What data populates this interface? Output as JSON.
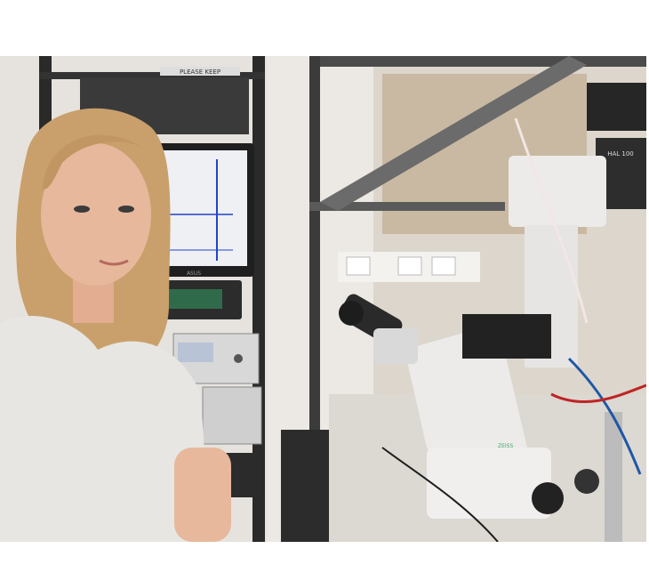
{
  "photo": {
    "scene": "lab-photo",
    "labels": {
      "rack_top_label": "PLEASE KEEP",
      "monitor_brand": "ASUS",
      "device_label": "HAL 100",
      "microscope_brand": "ZEISS"
    },
    "colors": {
      "wall": "#e6e3de",
      "shirt": "#e7e6e3",
      "hair": "#c9a06b",
      "skin": "#e7b89c",
      "rack": "#2a2a2a",
      "microscope": "#ecebea",
      "monitor_screen": "#eef0f4"
    }
  }
}
